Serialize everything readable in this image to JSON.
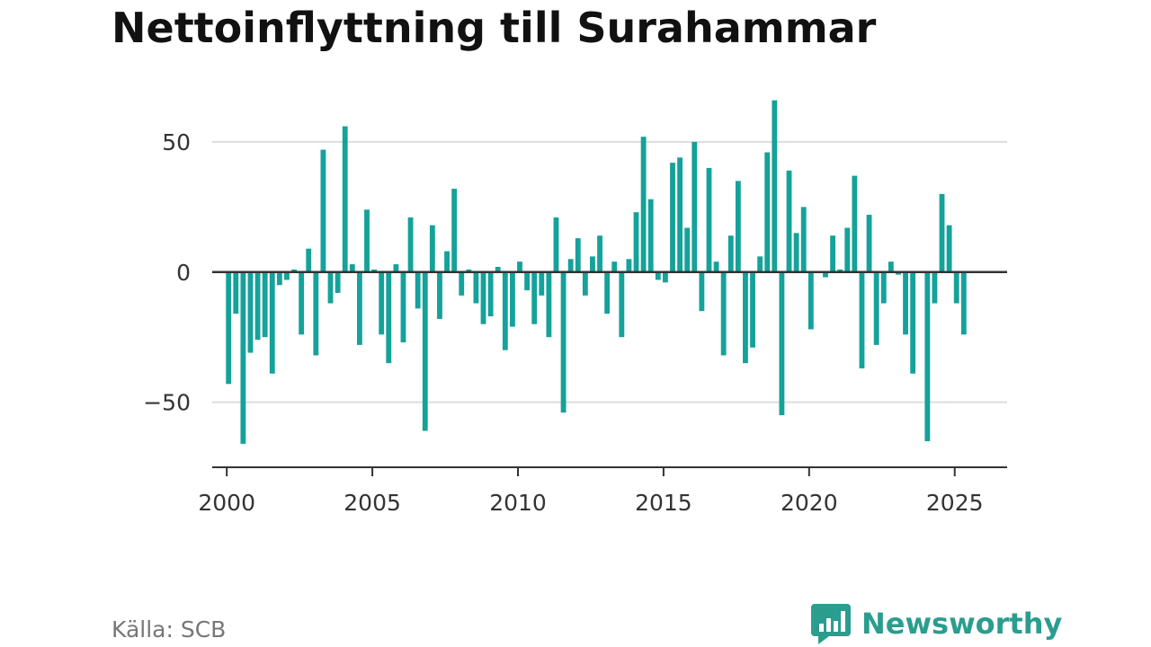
{
  "title": "Nettoinflyttning till Surahammar",
  "source": "Källa: SCB",
  "brand": {
    "name": "Newsworthy",
    "icon": "bar-chart-speech-bubble-icon"
  },
  "colors": {
    "bar": "#14a29a",
    "grid": "#dddddd",
    "zero_line": "#333333",
    "axis": "#333333",
    "brand": "#2a9d8f"
  },
  "chart_data": {
    "type": "bar",
    "title": "Nettoinflyttning till Surahammar",
    "xlabel": "",
    "ylabel": "",
    "ylim": [
      -75,
      70
    ],
    "xlim": [
      1999.5,
      2026.8
    ],
    "grid": true,
    "legend": "none",
    "yticks": [
      50,
      0,
      -50
    ],
    "ytick_labels": [
      "50",
      "0",
      "−50"
    ],
    "xticks": [
      2000,
      2005,
      2010,
      2015,
      2020,
      2025
    ],
    "xtick_labels": [
      "2000",
      "2005",
      "2010",
      "2015",
      "2020",
      "2025"
    ],
    "frequency": "quarterly",
    "values": [
      -43,
      -16,
      -66,
      -31,
      -26,
      -25,
      -39,
      -5,
      -3,
      1,
      -24,
      9,
      -32,
      47,
      -12,
      -8,
      56,
      3,
      -28,
      24,
      1,
      -24,
      -35,
      3,
      -27,
      21,
      -14,
      -61,
      18,
      -18,
      8,
      32,
      -9,
      1,
      -12,
      -20,
      -17,
      2,
      -30,
      -21,
      4,
      -7,
      -20,
      -9,
      -25,
      21,
      -54,
      5,
      13,
      -9,
      6,
      14,
      -16,
      4,
      -25,
      5,
      23,
      52,
      28,
      -3,
      -4,
      42,
      44,
      17,
      50,
      -15,
      40,
      4,
      -32,
      14,
      35,
      -35,
      -29,
      6,
      46,
      66,
      -55,
      39,
      15,
      25,
      -22,
      0,
      -2,
      14,
      1,
      17,
      37,
      -37,
      22,
      -28,
      -12,
      4,
      -1,
      -24,
      -39,
      0,
      -65,
      -12,
      30,
      18,
      -12,
      -24
    ]
  }
}
